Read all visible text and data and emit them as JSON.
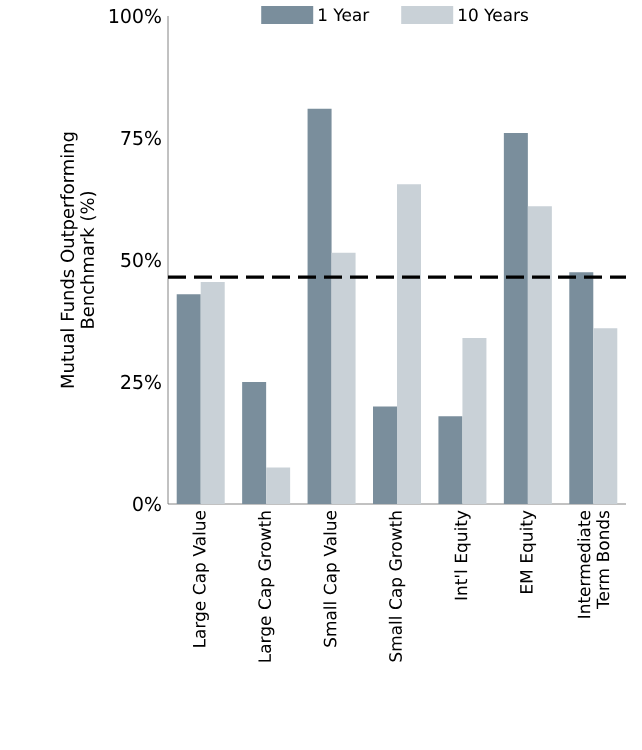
{
  "chart_data": {
    "type": "bar",
    "ylabel": "Mutual Funds Outperforming Benchmark (%)",
    "categories": [
      "Large Cap Value",
      "Large Cap Growth",
      "Small Cap Value",
      "Small Cap Growth",
      "Int'l Equity",
      "EM Equity",
      "Intermediate Term Bonds"
    ],
    "series": [
      {
        "name": "1 Year",
        "color": "#7a8e9c",
        "values": [
          43,
          25,
          81,
          20,
          18,
          76,
          47.5
        ]
      },
      {
        "name": "10 Years",
        "color": "#c9d1d7",
        "values": [
          45.5,
          7.5,
          51.5,
          65.5,
          34,
          61,
          36
        ]
      }
    ],
    "ylim": [
      0,
      100
    ],
    "yticks": [
      {
        "value": 0,
        "label": "0%"
      },
      {
        "value": 25,
        "label": "25%"
      },
      {
        "value": 50,
        "label": "50%"
      },
      {
        "value": 75,
        "label": "75%"
      },
      {
        "value": 100,
        "label": "100%"
      }
    ],
    "ref_lines": [
      {
        "axis": "y",
        "value": 46.5,
        "color": "#000000",
        "line_style": "dashed"
      }
    ],
    "grid": false,
    "legend": "top"
  }
}
